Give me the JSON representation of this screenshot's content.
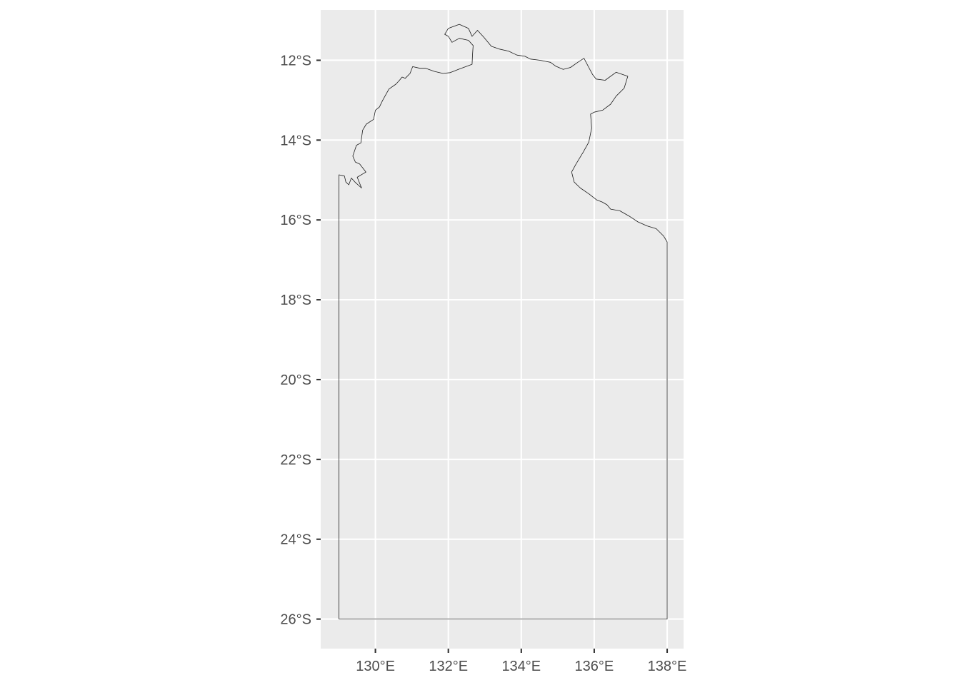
{
  "chart_data": {
    "type": "map",
    "title": "",
    "xlabel": "",
    "ylabel": "",
    "xlim": [
      128.5,
      138.45
    ],
    "ylim": [
      -26.74,
      -10.74
    ],
    "grid": true,
    "x_breaks": [
      130,
      132,
      134,
      136,
      138
    ],
    "y_breaks": [
      -12,
      -14,
      -16,
      -18,
      -20,
      -22,
      -24,
      -26
    ],
    "x_tick_labels": [
      "130°E",
      "132°E",
      "134°E",
      "136°E",
      "138°E"
    ],
    "y_tick_labels": [
      "12°S",
      "14°S",
      "16°S",
      "18°S",
      "20°S",
      "22°S",
      "24°S",
      "26°S"
    ],
    "region_outline": {
      "name": "",
      "coords": [
        [
          129.0,
          -26.0
        ],
        [
          129.0,
          -14.87
        ],
        [
          129.15,
          -14.9
        ],
        [
          129.19,
          -15.05
        ],
        [
          129.27,
          -15.12
        ],
        [
          129.34,
          -14.95
        ],
        [
          129.45,
          -15.06
        ],
        [
          129.62,
          -15.2
        ],
        [
          129.5,
          -14.93
        ],
        [
          129.74,
          -14.8
        ],
        [
          129.57,
          -14.6
        ],
        [
          129.45,
          -14.55
        ],
        [
          129.38,
          -14.4
        ],
        [
          129.48,
          -14.13
        ],
        [
          129.6,
          -14.07
        ],
        [
          129.65,
          -13.75
        ],
        [
          129.75,
          -13.6
        ],
        [
          129.95,
          -13.48
        ],
        [
          130.0,
          -13.25
        ],
        [
          130.11,
          -13.17
        ],
        [
          130.2,
          -13.0
        ],
        [
          130.37,
          -12.72
        ],
        [
          130.56,
          -12.6
        ],
        [
          130.66,
          -12.5
        ],
        [
          130.73,
          -12.42
        ],
        [
          130.82,
          -12.45
        ],
        [
          130.95,
          -12.33
        ],
        [
          131.02,
          -12.16
        ],
        [
          131.22,
          -12.2
        ],
        [
          131.38,
          -12.2
        ],
        [
          131.62,
          -12.28
        ],
        [
          131.85,
          -12.33
        ],
        [
          132.05,
          -12.31
        ],
        [
          132.3,
          -12.22
        ],
        [
          132.65,
          -12.1
        ],
        [
          132.66,
          -11.9
        ],
        [
          132.68,
          -11.63
        ],
        [
          132.55,
          -11.5
        ],
        [
          132.3,
          -11.45
        ],
        [
          132.1,
          -11.55
        ],
        [
          132.0,
          -11.4
        ],
        [
          131.9,
          -11.35
        ],
        [
          132.0,
          -11.2
        ],
        [
          132.3,
          -11.1
        ],
        [
          132.55,
          -11.2
        ],
        [
          132.65,
          -11.4
        ],
        [
          132.8,
          -11.25
        ],
        [
          132.97,
          -11.42
        ],
        [
          133.18,
          -11.65
        ],
        [
          133.4,
          -11.72
        ],
        [
          133.65,
          -11.77
        ],
        [
          133.88,
          -11.87
        ],
        [
          134.1,
          -11.9
        ],
        [
          134.25,
          -11.97
        ],
        [
          134.52,
          -12.0
        ],
        [
          134.8,
          -12.05
        ],
        [
          134.95,
          -12.15
        ],
        [
          135.15,
          -12.23
        ],
        [
          135.35,
          -12.18
        ],
        [
          135.55,
          -12.05
        ],
        [
          135.72,
          -11.95
        ],
        [
          135.85,
          -12.18
        ],
        [
          135.95,
          -12.35
        ],
        [
          136.05,
          -12.47
        ],
        [
          136.3,
          -12.5
        ],
        [
          136.6,
          -12.3
        ],
        [
          136.92,
          -12.4
        ],
        [
          136.82,
          -12.7
        ],
        [
          136.6,
          -12.9
        ],
        [
          136.45,
          -13.1
        ],
        [
          136.23,
          -13.25
        ],
        [
          136.0,
          -13.3
        ],
        [
          135.9,
          -13.35
        ],
        [
          135.93,
          -13.7
        ],
        [
          135.85,
          -14.05
        ],
        [
          135.7,
          -14.3
        ],
        [
          135.5,
          -14.6
        ],
        [
          135.38,
          -14.8
        ],
        [
          135.45,
          -15.05
        ],
        [
          135.62,
          -15.2
        ],
        [
          135.86,
          -15.35
        ],
        [
          136.07,
          -15.5
        ],
        [
          136.22,
          -15.55
        ],
        [
          136.35,
          -15.62
        ],
        [
          136.45,
          -15.73
        ],
        [
          136.7,
          -15.77
        ],
        [
          136.95,
          -15.9
        ],
        [
          137.2,
          -16.05
        ],
        [
          137.45,
          -16.15
        ],
        [
          137.7,
          -16.22
        ],
        [
          137.9,
          -16.4
        ],
        [
          138.0,
          -16.55
        ],
        [
          138.0,
          -26.0
        ],
        [
          129.0,
          -26.0
        ]
      ]
    }
  }
}
